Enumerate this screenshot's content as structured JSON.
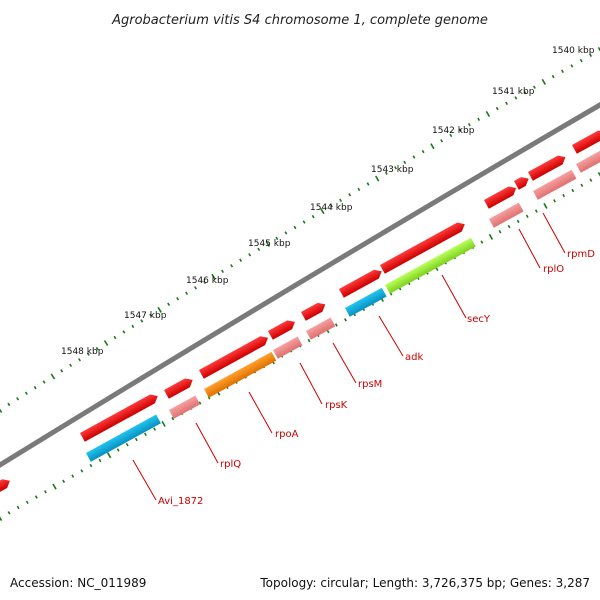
{
  "title": "Agrobacterium vitis S4 chromosome 1, complete genome",
  "accession_text": "Accession: NC_011989",
  "topology_text": "Topology: circular; Length: 3,726,375 bp; Genes: 3,287",
  "colors": {
    "backbone": "#7a7a7a",
    "ticks": "#1a7a1a",
    "gene_red": "#ee0000",
    "gene_pink": "#f08888",
    "cds_blue": "#11aadd",
    "cds_orange": "#ff8800",
    "cds_green": "#99ee33",
    "label": "#cc0000"
  },
  "kbp_labels": [
    "1540 kbp",
    "1541 kbp",
    "1542 kbp",
    "1543 kbp",
    "1544 kbp",
    "1545 kbp",
    "1546 kbp",
    "1547 kbp",
    "1548 kbp"
  ],
  "gene_labels": [
    "rpmD",
    "rplO",
    "secY",
    "adk",
    "rpsM",
    "rpsK",
    "rpoA",
    "rplQ",
    "Avi_1872"
  ]
}
